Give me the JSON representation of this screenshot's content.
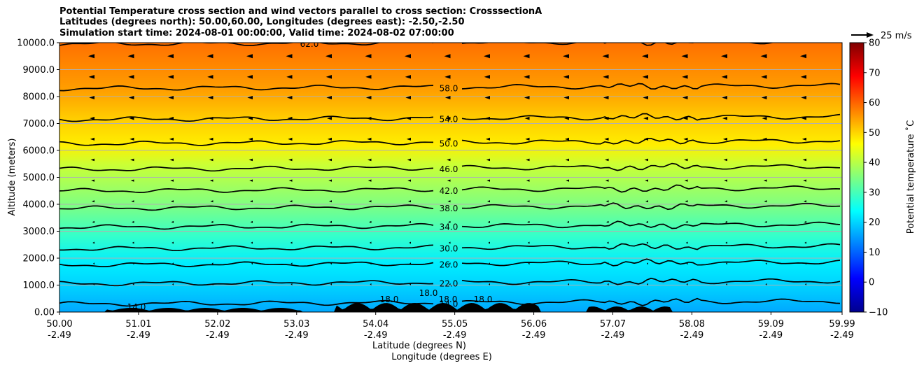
{
  "chart_data": {
    "type": "contour",
    "title_lines": [
      "Potential Temperature cross section and wind vectors parallel to cross section: CrosssectionA",
      "Latitudes (degrees north): 50.00,60.00, Longitudes (degrees east): -2.50,-2.50",
      "Simulation start time: 2024-08-01 00:00:00, Valid time: 2024-08-02 07:00:00"
    ],
    "xlabel": "Latitude (degrees N)",
    "xlabel2": "Longitude (degrees E)",
    "ylabel": "Altitude (meters)",
    "x_ticks_lat": [
      "50.00",
      "51.01",
      "52.02",
      "53.03",
      "54.04",
      "55.05",
      "56.06",
      "57.07",
      "58.08",
      "59.09",
      "59.99"
    ],
    "x_ticks_lon": [
      "-2.49",
      "-2.49",
      "-2.49",
      "-2.49",
      "-2.49",
      "-2.49",
      "-2.49",
      "-2.49",
      "-2.49",
      "-2.49",
      "-2.49"
    ],
    "ylim": [
      0,
      10000
    ],
    "y_ticks": [
      "0.00",
      "1000.0",
      "2000.0",
      "3000.0",
      "4000.0",
      "5000.0",
      "6000.0",
      "7000.0",
      "8000.0",
      "9000.0",
      "10000.0"
    ],
    "colorbar": {
      "label": "Potential temperature ˚C",
      "range": [
        -10,
        80
      ],
      "ticks": [
        "−10",
        "0",
        "10",
        "20",
        "30",
        "40",
        "50",
        "60",
        "70",
        "80"
      ]
    },
    "quiver_key": "25 m/s",
    "contour_levels": [
      {
        "value": 14.0,
        "label": "14.0",
        "altitude": 300
      },
      {
        "value": 22.0,
        "label": "22.0",
        "altitude": 1050
      },
      {
        "value": 26.0,
        "label": "26.0",
        "altitude": 1750
      },
      {
        "value": 30.0,
        "label": "30.0",
        "altitude": 2350
      },
      {
        "value": 34.0,
        "label": "34.0",
        "altitude": 3150
      },
      {
        "value": 38.0,
        "label": "38.0",
        "altitude": 3850
      },
      {
        "value": 42.0,
        "label": "42.0",
        "altitude": 4500
      },
      {
        "value": 46.0,
        "label": "46.0",
        "altitude": 5300
      },
      {
        "value": 50.0,
        "label": "50.0",
        "altitude": 6250
      },
      {
        "value": 54.0,
        "label": "54.0",
        "altitude": 7150
      },
      {
        "value": 58.0,
        "label": "58.0",
        "altitude": 8300
      },
      {
        "value": 62.0,
        "label": "62.0",
        "altitude": 9950
      }
    ],
    "extra_contour_labels": [
      "14.0",
      "18.0",
      "18.0",
      "18.0",
      "18.0"
    ],
    "grid": true
  }
}
